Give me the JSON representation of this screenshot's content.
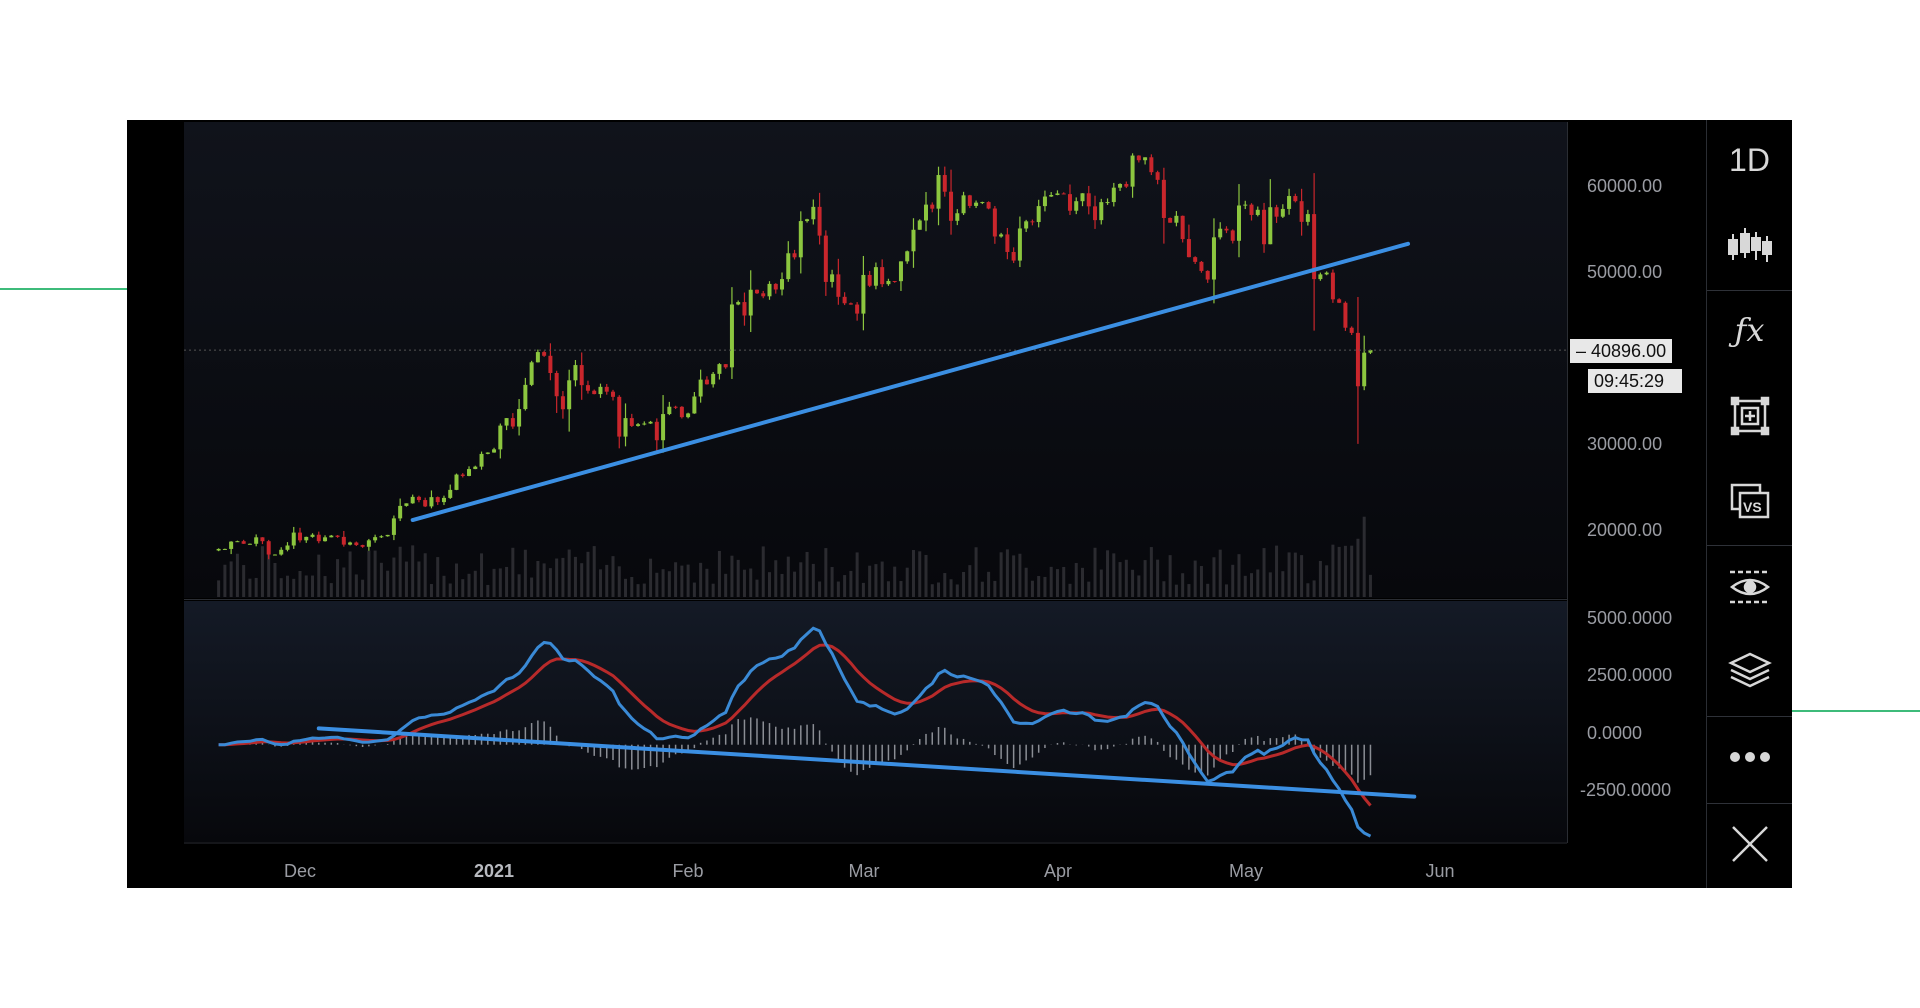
{
  "toolbar": {
    "interval": "1D",
    "items": [
      "candles-icon",
      "function-icon",
      "add-frame-icon",
      "compare-vs-icon",
      "visibility-icon",
      "layers-icon",
      "more-icon",
      "close-icon"
    ]
  },
  "price_tag": {
    "value": "40896.00",
    "countdown": "09:45:29"
  },
  "colors": {
    "up": "#8cc63f",
    "down": "#c9262c",
    "trendline": "#3b8fe3",
    "macd": "#3a8ad6",
    "signal": "#b82a2a",
    "background": "#0b0d13"
  },
  "chart_data": [
    {
      "type": "candlestick",
      "interval": "1D",
      "y_ticks": [
        "60000.00",
        "50000.00",
        "30000.00",
        "20000.00"
      ],
      "y_tick_values": [
        60000,
        50000,
        30000,
        20000
      ],
      "ylim": [
        12100,
        67400
      ],
      "x_ticks": [
        "Dec",
        "2021",
        "Feb",
        "Mar",
        "Apr",
        "May",
        "Jun"
      ],
      "x_tick_dates": [
        "2020-12-01",
        "2021-01-01",
        "2021-02-01",
        "2021-03-01",
        "2021-04-01",
        "2021-05-01",
        "2021-06-01"
      ],
      "xlim": [
        "2020-11-18",
        "2021-06-10"
      ],
      "start_date": "2020-11-18",
      "close": [
        17800,
        17800,
        18650,
        18700,
        18400,
        18400,
        19150,
        18700,
        17150,
        17150,
        17700,
        18200,
        19700,
        18800,
        19200,
        19450,
        18700,
        19150,
        19350,
        19200,
        18300,
        18550,
        18250,
        18050,
        18800,
        19170,
        19270,
        19430,
        21350,
        22800,
        23100,
        23850,
        23480,
        22740,
        23820,
        23240,
        23730,
        24660,
        26440,
        26280,
        27080,
        27360,
        28840,
        29000,
        29370,
        32130,
        33000,
        32020,
        34050,
        36860,
        39480,
        40670,
        40240,
        38240,
        35540,
        34030,
        37390,
        39160,
        36830,
        36180,
        35790,
        36630,
        36070,
        35470,
        30850,
        33000,
        32090,
        32290,
        32370,
        32570,
        30430,
        33470,
        34320,
        34310,
        33110,
        33540,
        35510,
        37470,
        36930,
        38140,
        39270,
        38900,
        46200,
        46480,
        44920,
        47910,
        47500,
        47150,
        48590,
        47940,
        49150,
        52150,
        51680,
        55890,
        56100,
        57540,
        54200,
        48820,
        49700,
        47090,
        46340,
        46190,
        45140,
        49630,
        48380,
        50540,
        48560,
        48930,
        48910,
        51210,
        52380,
        54880,
        55960,
        57800,
        57330,
        61240,
        59300,
        55920,
        56800,
        58880,
        57650,
        58030,
        58100,
        57350,
        54100,
        54340,
        52300,
        51300,
        55030,
        55860,
        55780,
        57630,
        58740,
        58920,
        59100,
        59020,
        57090,
        58200,
        59120,
        57600,
        56000,
        58090,
        58100,
        59770,
        60200,
        59890,
        63500,
        62960,
        63300,
        61570,
        60680,
        56250,
        55700,
        56500,
        53800,
        51700,
        51150,
        50100,
        49100,
        54000,
        55000,
        54800,
        53600,
        57700,
        57800,
        56600,
        57200,
        53200,
        57500,
        56400,
        57300,
        58800,
        58200,
        55800,
        56700,
        49150,
        49700,
        49900,
        46800,
        46400,
        43500,
        42900,
        36700,
        40600,
        40896
      ],
      "extreme_lows": [
        {
          "date": "2021-05-19",
          "low": 30000
        }
      ],
      "current_price": 40896,
      "trendline": {
        "from": {
          "date": "2020-12-19",
          "price": 21160
        },
        "to": {
          "date": "2021-05-27",
          "price": 53250
        }
      }
    },
    {
      "type": "macd",
      "params": [
        12,
        26,
        9
      ],
      "y_ticks": [
        "5000.0000",
        "2500.0000",
        "0.0000",
        "-2500.0000"
      ],
      "y_tick_values": [
        5000,
        2500,
        0,
        -2500
      ],
      "ylim": [
        -4400,
        6500
      ],
      "trendline": {
        "from": {
          "date": "2020-12-04",
          "value": 740
        },
        "to": {
          "date": "2021-05-28",
          "value": -2350
        }
      }
    }
  ]
}
